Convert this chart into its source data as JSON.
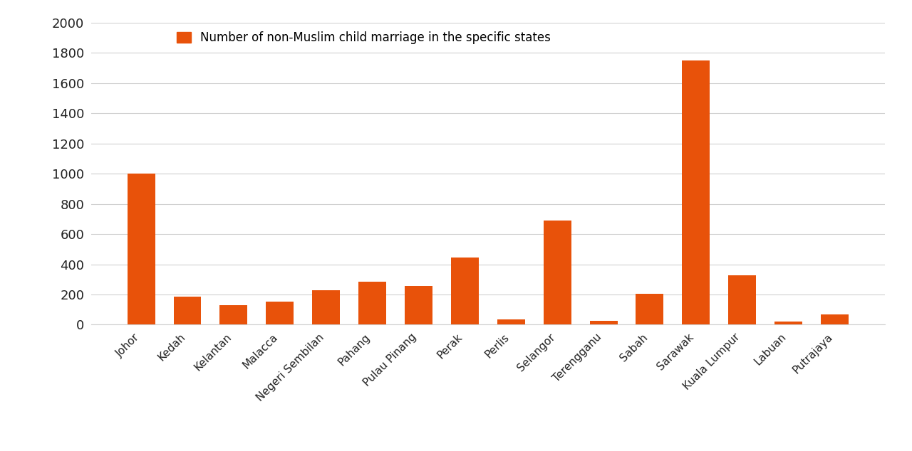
{
  "categories": [
    "Johor",
    "Kedah",
    "Kelantan",
    "Malacca",
    "Negeri Sembilan",
    "Pahang",
    "Pulau Pinang",
    "Perak",
    "Perlis",
    "Selangor",
    "Terengganu",
    "Sabah",
    "Sarawak",
    "Kuala Lumpur",
    "Labuan",
    "Putrajaya"
  ],
  "values": [
    1000,
    185,
    130,
    155,
    230,
    285,
    255,
    445,
    35,
    690,
    25,
    205,
    1750,
    325,
    20,
    70
  ],
  "bar_color": "#E8520A",
  "legend_label": "Number of non-Muslim child marriage in the specific states",
  "ylim": [
    0,
    2000
  ],
  "yticks": [
    0,
    200,
    400,
    600,
    800,
    1000,
    1200,
    1400,
    1600,
    1800,
    2000
  ],
  "background_color": "#ffffff",
  "grid_color": "#d0d0d0",
  "tick_label_color": "#222222",
  "tick_fontsize": 13,
  "xtick_fontsize": 11,
  "legend_fontsize": 12
}
